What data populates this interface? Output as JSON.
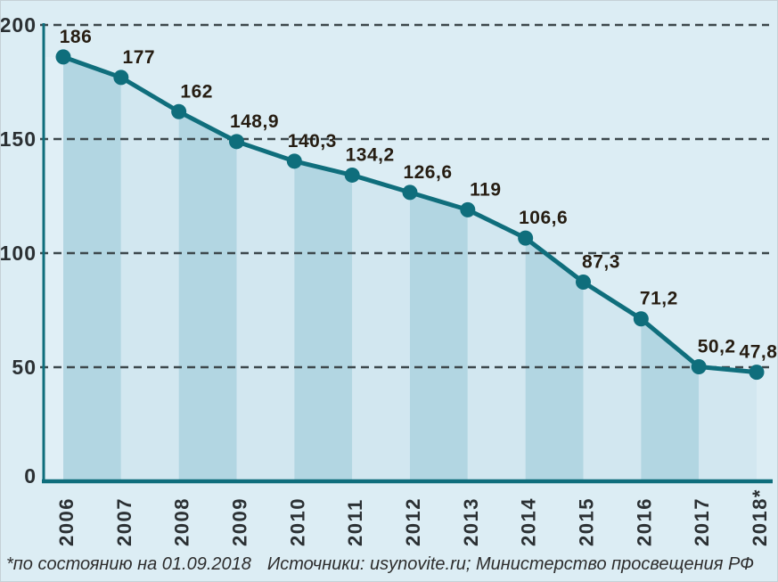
{
  "chart_data": {
    "type": "area",
    "title": "",
    "xlabel": "",
    "ylabel": "",
    "categories": [
      "2006",
      "2007",
      "2008",
      "2009",
      "2010",
      "2011",
      "2012",
      "2013",
      "2014",
      "2015",
      "2016",
      "2017",
      "2018*"
    ],
    "values": [
      186,
      177,
      162,
      148.9,
      140.3,
      134.2,
      126.6,
      119,
      106.6,
      87.3,
      71.2,
      50.2,
      47.8
    ],
    "value_labels": [
      "186",
      "177",
      "162",
      "148,9",
      "140,3",
      "134,2",
      "126,6",
      "119",
      "106,6",
      "87,3",
      "71,2",
      "50,2",
      "47,8"
    ],
    "y_ticks": [
      0,
      50,
      100,
      150,
      200
    ],
    "ylim": [
      0,
      200
    ],
    "grid": "horizontal-dashed",
    "legend": "none",
    "footnote": "*по состоянию на 01.09.2018",
    "sources": "Источники: usynovite.ru; Министерство просвещения РФ",
    "colors": {
      "background": "#dcedf4",
      "band_dark": "#b2d6e2",
      "band_light": "#d2e7f0",
      "band_edge": "#e0eff6",
      "line": "#0f6e7c",
      "grid": "#3d484c",
      "tick_text": "#2b3033",
      "value_text": "#261d12",
      "caption_text": "#2d2d2d"
    }
  }
}
